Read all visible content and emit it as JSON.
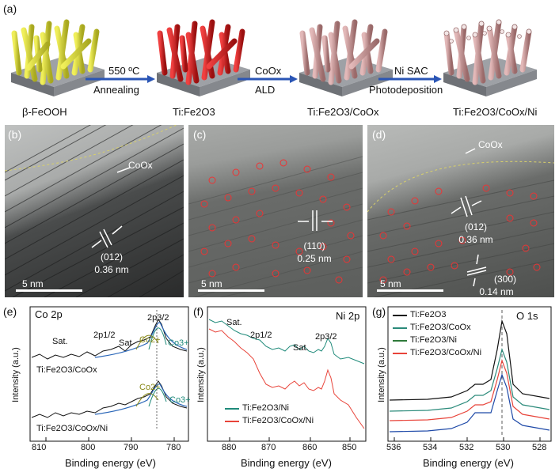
{
  "panel_a": {
    "letter": "(a)",
    "samples": [
      "β-FeOOH",
      "Ti:Fe2O3",
      "Ti:Fe2O3/CoOx",
      "Ti:Fe2O3/CoOx/Ni"
    ],
    "steps": [
      {
        "top": "550 ºC",
        "bottom": "Annealing"
      },
      {
        "top": "CoOx",
        "bottom": "ALD"
      },
      {
        "top": "Ni SAC",
        "bottom": "Photodeposition"
      }
    ],
    "colors": {
      "yellow": "#d9d93a",
      "red": "#d42020",
      "pink": "#c99a9a",
      "substrate": "#8a8d92",
      "arrow": "#2a55b5"
    }
  },
  "panel_b": {
    "letter": "(b)",
    "label": "CoOx",
    "plane": "(012)",
    "dspacing": "0.36 nm",
    "scale": "5 nm"
  },
  "panel_c": {
    "letter": "(c)",
    "plane": "(110)",
    "dspacing": "0.25 nm",
    "scale": "5 nm"
  },
  "panel_d": {
    "letter": "(d)",
    "label": "CoOx",
    "plane1": "(012)",
    "dspacing1": "0.36 nm",
    "plane2": "(300)",
    "dspacing2": "0.14 nm",
    "scale": "5 nm"
  },
  "panel_e": {
    "letter": "(e)",
    "title": "Co 2p",
    "xlabel": "Binding energy (eV)",
    "ylabel": "Intensity (a.u.)",
    "xticks": [
      "810",
      "800",
      "790",
      "780"
    ],
    "annotations": [
      "Sat.",
      "2p1/2",
      "Sat",
      "2p3/2",
      "Co2+",
      "Co3+",
      "Co2+",
      "Co3+"
    ],
    "series": [
      "Ti:Fe2O3/CoOx",
      "Ti:Fe2O3/CoOx/Ni"
    ]
  },
  "panel_f": {
    "letter": "(f)",
    "title": "Ni 2p",
    "xlabel": "Binding energy (eV)",
    "ylabel": "Intensity (a.u.)",
    "xticks": [
      "880",
      "870",
      "860",
      "850"
    ],
    "annotations": [
      "Sat.",
      "2p1/2",
      "Sat.",
      "2p3/2"
    ],
    "legend": [
      "Ti:Fe2O3/Ni",
      "Ti:Fe2O3/CoOx/Ni"
    ],
    "colors": [
      "#1f8a7a",
      "#e8443a"
    ]
  },
  "panel_g": {
    "letter": "(g)",
    "title": "O 1s",
    "xlabel": "Binding energy (eV)",
    "ylabel": "Intensity (a.u.)",
    "xticks": [
      "536",
      "534",
      "532",
      "530",
      "528"
    ],
    "legend": [
      "Ti:Fe2O3",
      "Ti:Fe2O3/CoOx",
      "Ti:Fe2O3/Ni",
      "Ti:Fe2O3/CoOx/Ni"
    ],
    "colors": [
      "#111111",
      "#2a8a7a",
      "#2f7a3a",
      "#e8443a"
    ],
    "extra_color": "#1f4aa8"
  }
}
